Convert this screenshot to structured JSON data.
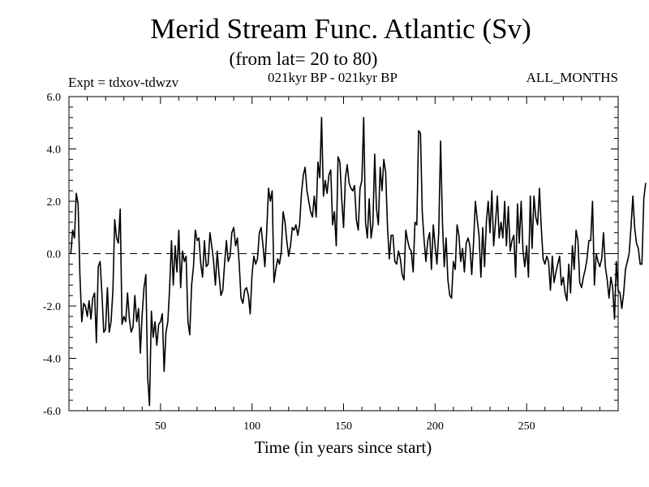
{
  "chart_data": {
    "type": "line",
    "title": "Merid Stream Func. Atlantic (Sv)",
    "subtitle": "(from lat= 20 to 80)",
    "annotations": {
      "left": "Expt = tdxov-tdwzv",
      "center": "021kyr BP - 021kyr BP",
      "right": "ALL_MONTHS"
    },
    "xlabel": "Time (in years since start)",
    "ylabel": "",
    "xlim": [
      0,
      300
    ],
    "ylim": [
      -6,
      6
    ],
    "x_ticks": [
      50,
      100,
      150,
      200,
      250
    ],
    "y_ticks": [
      -6,
      -4,
      -2,
      0,
      2,
      4,
      6
    ],
    "y_tick_labels": [
      "-6.0",
      "-4.0",
      "-2.0",
      "0.0",
      "2.0",
      "4.0",
      "6.0"
    ],
    "zero_line": "dashed",
    "grid": false,
    "legend": "none",
    "series": [
      {
        "x_start": 1,
        "x_step": 1,
        "values": [
          0.0,
          0.9,
          0.6,
          2.3,
          1.9,
          -0.8,
          -2.6,
          -1.9,
          -2.0,
          -2.4,
          -1.8,
          -2.5,
          -1.7,
          -1.5,
          -3.4,
          -0.5,
          -0.3,
          -1.5,
          -3.0,
          -2.9,
          -1.3,
          -3.0,
          -2.6,
          -1.4,
          1.3,
          0.6,
          0.4,
          1.7,
          -2.7,
          -2.4,
          -2.6,
          -1.5,
          -2.5,
          -3.0,
          -2.8,
          -1.6,
          -2.6,
          -2.1,
          -3.8,
          -2.3,
          -1.3,
          -0.8,
          -4.7,
          -5.8,
          -2.2,
          -3.2,
          -2.6,
          -3.5,
          -2.7,
          -2.6,
          -2.3,
          -4.5,
          -3.0,
          -2.6,
          -1.3,
          0.5,
          -1.2,
          0.3,
          -0.7,
          0.9,
          -1.3,
          0.1,
          -0.3,
          -0.1,
          -2.6,
          -3.1,
          -1.2,
          -0.5,
          0.9,
          0.5,
          0.6,
          -0.4,
          -0.9,
          0.5,
          -0.5,
          -0.4,
          0.8,
          0.3,
          -0.3,
          -1.2,
          0.1,
          -0.8,
          -1.6,
          -1.4,
          -0.4,
          0.5,
          -0.3,
          -0.1,
          0.8,
          1.0,
          0.3,
          0.6,
          -0.4,
          -1.7,
          -1.9,
          -1.4,
          -1.3,
          -1.6,
          -2.3,
          -0.8,
          -0.1,
          -0.4,
          -0.2,
          0.8,
          1.0,
          0.3,
          -0.5,
          0.8,
          2.5,
          2.0,
          2.4,
          -1.1,
          -0.6,
          -0.2,
          -0.4,
          0.1,
          1.6,
          1.2,
          0.5,
          -0.1,
          0.3,
          1.0,
          0.9,
          1.1,
          0.7,
          1.1,
          2.3,
          3.0,
          3.3,
          2.4,
          2.0,
          1.6,
          1.4,
          2.2,
          1.4,
          3.5,
          2.9,
          5.2,
          2.2,
          2.8,
          2.3,
          3.0,
          3.2,
          1.1,
          1.6,
          0.3,
          3.7,
          3.5,
          2.1,
          1.0,
          2.9,
          3.4,
          2.7,
          2.5,
          2.4,
          2.6,
          1.3,
          0.9,
          2.5,
          2.8,
          5.2,
          1.2,
          0.6,
          2.1,
          0.6,
          1.1,
          3.8,
          1.7,
          1.1,
          3.3,
          2.4,
          3.6,
          3.1,
          1.0,
          -0.2,
          0.7,
          0.7,
          -0.3,
          -0.4,
          0.1,
          -0.2,
          -0.8,
          -1.0,
          0.9,
          0.5,
          0.2,
          0.1,
          -0.7,
          1.2,
          1.1,
          4.7,
          4.6,
          1.6,
          0.5,
          -0.3,
          0.5,
          0.8,
          -0.6,
          1.1,
          0.3,
          -0.4,
          0.8,
          4.3,
          1.2,
          -0.5,
          0.6,
          -1.0,
          -1.6,
          -1.7,
          -0.3,
          -0.6,
          1.1,
          0.7,
          -0.3,
          0.2,
          -0.7,
          0.4,
          0.6,
          0.3,
          -0.8,
          0.4,
          2.0,
          1.3,
          0.7,
          -0.9,
          1.0,
          -0.5,
          1.2,
          2.0,
          0.8,
          2.4,
          0.3,
          1.2,
          2.2,
          0.6,
          1.2,
          0.6,
          2.0,
          0.3,
          1.8,
          0.1,
          0.5,
          0.7,
          -0.9,
          1.9,
          0.4,
          2.0,
          0.1,
          -0.5,
          0.3,
          -0.9,
          2.2,
          0.2,
          2.2,
          1.4,
          1.1,
          2.5,
          1.0,
          -0.2,
          -0.4,
          -0.1,
          -0.3,
          -1.4,
          -0.1,
          -1.1,
          -0.7,
          -0.4,
          -0.1,
          -1.2,
          -0.9,
          -1.5,
          -1.8,
          -0.4,
          -1.5,
          0.3,
          -0.6,
          0.9,
          0.5,
          -1.1,
          -1.3,
          -0.9,
          -0.6,
          -0.2,
          0.5,
          0.5,
          2.0,
          -1.2,
          0.0,
          -0.3,
          -0.5,
          -0.2,
          0.8,
          -0.5,
          -1.0,
          -1.7,
          -0.9,
          -1.3,
          -2.5,
          -0.3,
          -1.4,
          -1.5,
          -2.1,
          -1.5,
          -0.6,
          -0.3,
          0.0,
          1.0,
          2.2,
          1.0,
          0.4,
          0.2,
          -0.4,
          -0.4,
          2.1,
          2.7
        ]
      }
    ]
  }
}
